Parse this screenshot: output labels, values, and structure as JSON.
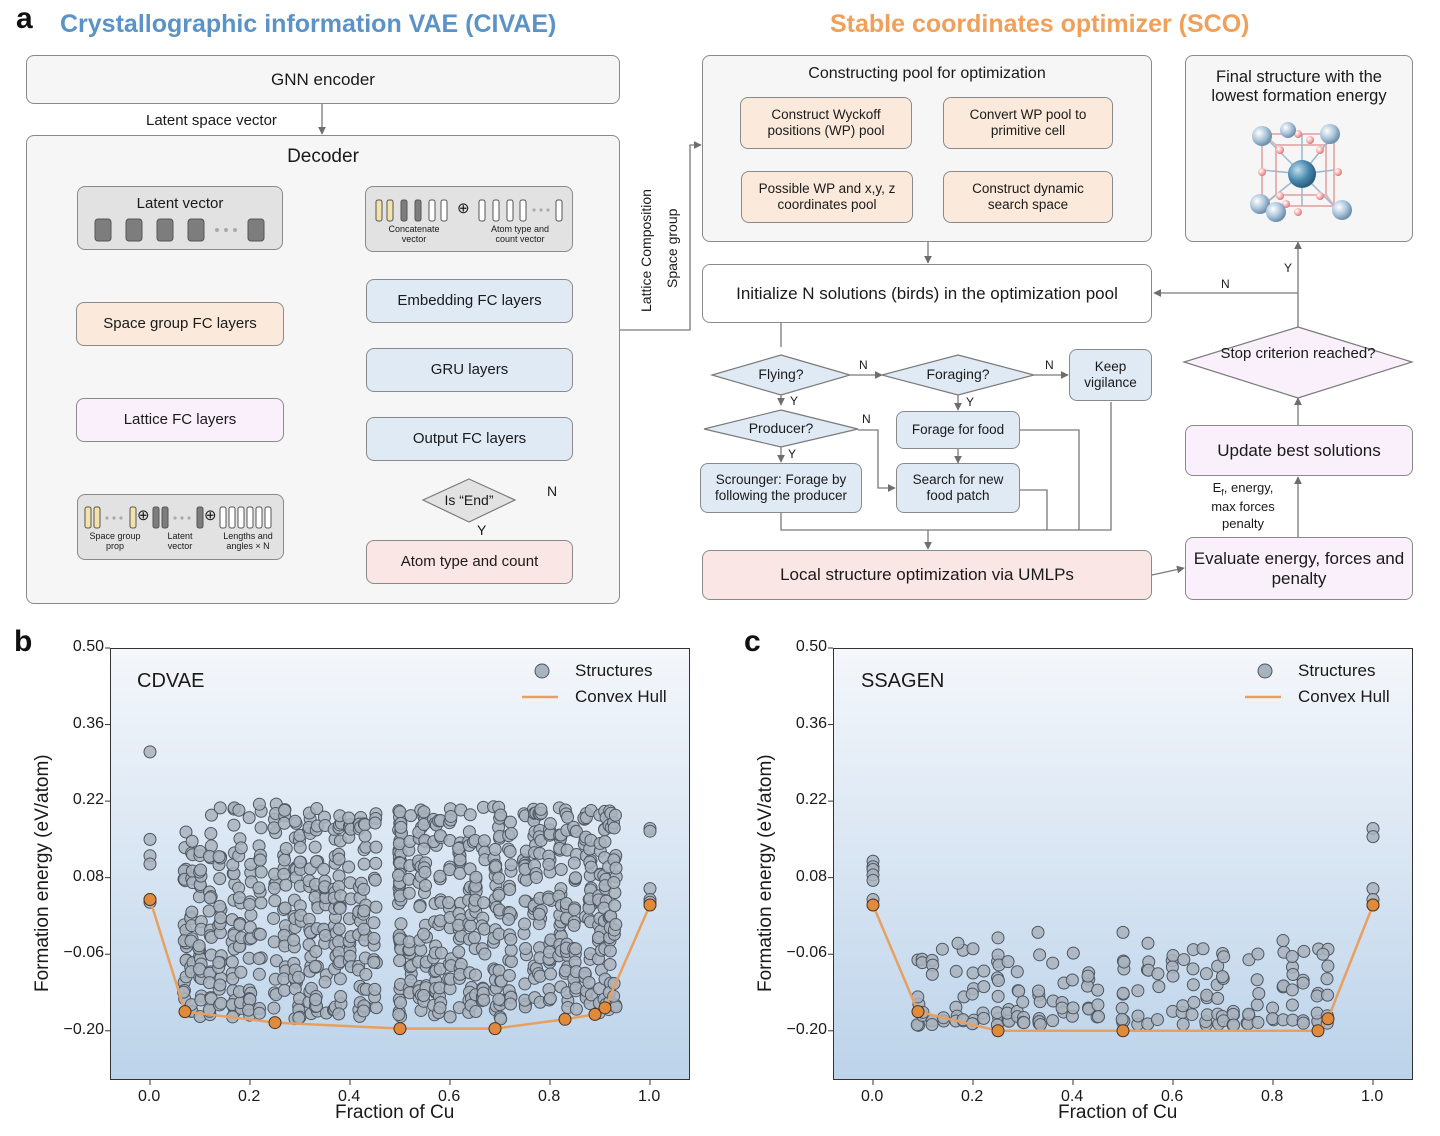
{
  "panels": {
    "a": "a",
    "b": "b",
    "c": "c"
  },
  "titles": {
    "civae": "Crystallographic information VAE (CIVAE)",
    "sco": "Stable coordinates optimizer (SCO)"
  },
  "civae": {
    "gnn_encoder": "GNN encoder",
    "latent_space_vector": "Latent space vector",
    "decoder": "Decoder",
    "latent_vector": "Latent  vector",
    "space_group_fc": "Space group FC layers",
    "lattice_fc": "Lattice FC layers",
    "concatenate_vector": "Concatenate vector",
    "atom_type_count_vector": "Atom type and count vector",
    "embedding_fc": "Embedding FC layers",
    "gru": "GRU layers",
    "output_fc": "Output FC layers",
    "is_end": "Is “End”",
    "n": "N",
    "y": "Y",
    "atom_type_count": "Atom type and count",
    "space_group_prop": "Space group prop",
    "latent_vector_small": "Latent vector",
    "lengths_angles": "Lengths and angles × N",
    "side_lattice": "Lattice",
    "side_composition": "Composition",
    "side_space_group": "Space group",
    "oplus": "⊕"
  },
  "sco": {
    "constructing_pool": "Constructing pool for optimization",
    "construct_wp": "Construct Wyckoff positions (WP) pool",
    "convert_wp": "Convert WP pool to primitive cell",
    "construct_dynamic": "Construct dynamic search space",
    "possible_wp": "Possible WP and x,y, z coordinates pool",
    "final_structure": "Final structure with the lowest formation energy",
    "initialize": "Initialize N solutions (birds) in the optimization pool",
    "flying": "Flying?",
    "foraging": "Foraging?",
    "keep_vigilance": "Keep vigilance",
    "producer": "Producer?",
    "forage_food": "Forage for food",
    "scrounger": "Scrounger: Forage by following the producer",
    "search_new": "Search for new food patch",
    "local_opt": "Local structure optimization via UMLPs",
    "evaluate": "Evaluate energy, forces and penalty",
    "update_best": "Update best solutions",
    "stop_criterion": "Stop criterion reached?",
    "ef_note": "Eₙ, energy, max forces penalty",
    "ef_line1": "E",
    "ef_sub": "f",
    "ef_line1b": ", energy,",
    "ef_line2": "max forces",
    "ef_line3": "penalty",
    "n": "N",
    "y": "Y"
  },
  "colors": {
    "civae_title": "#5b93c7",
    "sco_title": "#f0a05a",
    "scatter_fill": "#a9b3bd",
    "hull_line": "#e8a060",
    "hull_point": "#e08a3c"
  },
  "chart_data": [
    {
      "type": "scatter",
      "title": "CDVAE",
      "xlabel": "Fraction of Cu",
      "ylabel": "Formation energy (eV/atom)",
      "xlim": [
        -0.08,
        1.08
      ],
      "ylim": [
        -0.29,
        0.5
      ],
      "xticks": [
        "0.0",
        "0.2",
        "0.4",
        "0.6",
        "0.8",
        "1.0"
      ],
      "yticks": [
        "−0.20",
        "−0.06",
        "0.08",
        "0.22",
        "0.36",
        "0.50"
      ],
      "legend": {
        "position": "top-right",
        "entries": [
          "Structures",
          "Convex Hull"
        ]
      },
      "hull": {
        "x": [
          0.0,
          0.07,
          0.25,
          0.5,
          0.69,
          0.83,
          0.89,
          0.91,
          1.0
        ],
        "y": [
          0.04,
          -0.165,
          -0.185,
          -0.196,
          -0.196,
          -0.179,
          -0.17,
          -0.158,
          0.03
        ]
      },
      "structures_description": "Dense cloud of ~1000 structures spanning x from 0.07 to 0.93 with formation energies mostly between -0.17 and 0.25 eV/atom; endpoints at x=0 (0.04 to 0.31) and x=1 (0.04 to 0.17).",
      "sample_extremes": {
        "max_y_point": [
          0.0,
          0.31
        ],
        "min_y_region": -0.19
      }
    },
    {
      "type": "scatter",
      "title": "SSAGEN",
      "xlabel": "Fraction of Cu",
      "ylabel": "Formation energy (eV/atom)",
      "xlim": [
        -0.08,
        1.08
      ],
      "ylim": [
        -0.29,
        0.5
      ],
      "xticks": [
        "0.0",
        "0.2",
        "0.4",
        "0.6",
        "0.8",
        "1.0"
      ],
      "yticks": [
        "−0.20",
        "−0.06",
        "0.08",
        "0.22",
        "0.36",
        "0.50"
      ],
      "legend": {
        "position": "top-right",
        "entries": [
          "Structures",
          "Convex Hull"
        ]
      },
      "hull": {
        "x": [
          0.0,
          0.09,
          0.25,
          0.5,
          0.89,
          0.91,
          1.0
        ],
        "y": [
          0.03,
          -0.165,
          -0.2,
          -0.2,
          -0.2,
          -0.178,
          0.03
        ]
      },
      "structures_description": "About 200 structures concentrated between -0.19 and -0.03 eV/atom for 0.09 ≤ x ≤ 0.91; endpoints at x=0 (0.03 to 0.11) and x=1 (0.03 to 0.17)."
    }
  ]
}
